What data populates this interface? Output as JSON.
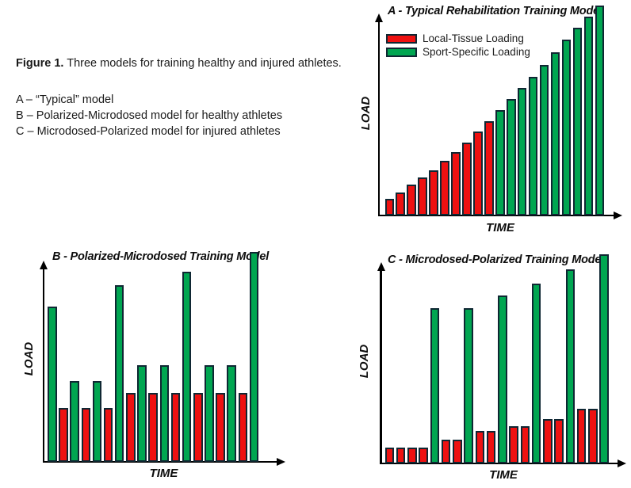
{
  "figure_caption": {
    "label": "Figure 1.",
    "text": "Three models for training healthy and injured athletes.",
    "model_list": [
      "A – “Typical” model",
      "B – Polarized-Microdosed model for healthy athletes",
      "C – Microdosed-Polarized model for injured athletes"
    ]
  },
  "colors": {
    "local_tissue_red": "#ee1111",
    "sport_specific_green": "#00a651",
    "bar_outline": "#0f2733",
    "axis": "#000000"
  },
  "chart_data": [
    {
      "id": "A",
      "type": "bar",
      "title": "A - Typical Rehabilitation Training Model",
      "xlabel": "TIME",
      "ylabel": "LOAD",
      "axes": "unlabeled schematic axes with arrowheads",
      "values_unit": "relative load (fraction of tallest bar)",
      "ylim": [
        0,
        1
      ],
      "grid": false,
      "legend_position": "top-left",
      "series": [
        {
          "key": "local",
          "name": "Local-Tissue Loading",
          "color": "#ee1111"
        },
        {
          "key": "sport",
          "name": "Sport-Specific Loading",
          "color": "#00a651"
        }
      ],
      "bars": [
        {
          "s": "local",
          "v": 0.08
        },
        {
          "s": "local",
          "v": 0.11
        },
        {
          "s": "local",
          "v": 0.147
        },
        {
          "s": "local",
          "v": 0.181
        },
        {
          "s": "local",
          "v": 0.215
        },
        {
          "s": "local",
          "v": 0.26
        },
        {
          "s": "local",
          "v": 0.302
        },
        {
          "s": "local",
          "v": 0.347
        },
        {
          "s": "local",
          "v": 0.4
        },
        {
          "s": "local",
          "v": 0.449
        },
        {
          "s": "sport",
          "v": 0.502
        },
        {
          "s": "sport",
          "v": 0.555
        },
        {
          "s": "sport",
          "v": 0.608
        },
        {
          "s": "sport",
          "v": 0.66
        },
        {
          "s": "sport",
          "v": 0.717
        },
        {
          "s": "sport",
          "v": 0.777
        },
        {
          "s": "sport",
          "v": 0.838
        },
        {
          "s": "sport",
          "v": 0.894
        },
        {
          "s": "sport",
          "v": 0.947
        },
        {
          "s": "sport",
          "v": 1.0
        }
      ]
    },
    {
      "id": "B",
      "type": "bar",
      "title": "B - Polarized-Microdosed Training Model",
      "xlabel": "TIME",
      "ylabel": "LOAD",
      "axes": "unlabeled schematic axes with arrowheads",
      "values_unit": "relative load (fraction of tallest bar)",
      "ylim": [
        0,
        1
      ],
      "grid": false,
      "legend_position": "none",
      "series": [
        {
          "key": "local",
          "name": "Local-Tissue Loading",
          "color": "#ee1111"
        },
        {
          "key": "sport",
          "name": "Sport-Specific Loading",
          "color": "#00a651"
        }
      ],
      "bars": [
        {
          "s": "sport",
          "v": 0.74
        },
        {
          "s": "local",
          "v": 0.257
        },
        {
          "s": "sport",
          "v": 0.385
        },
        {
          "s": "local",
          "v": 0.257
        },
        {
          "s": "sport",
          "v": 0.385
        },
        {
          "s": "local",
          "v": 0.257
        },
        {
          "s": "sport",
          "v": 0.842
        },
        {
          "s": "local",
          "v": 0.328
        },
        {
          "s": "sport",
          "v": 0.46
        },
        {
          "s": "local",
          "v": 0.328
        },
        {
          "s": "sport",
          "v": 0.46
        },
        {
          "s": "local",
          "v": 0.328
        },
        {
          "s": "sport",
          "v": 0.906
        },
        {
          "s": "local",
          "v": 0.328
        },
        {
          "s": "sport",
          "v": 0.46
        },
        {
          "s": "local",
          "v": 0.328
        },
        {
          "s": "sport",
          "v": 0.46
        },
        {
          "s": "local",
          "v": 0.328
        },
        {
          "s": "sport",
          "v": 1.0
        }
      ]
    },
    {
      "id": "C",
      "type": "bar",
      "title": "C - Microdosed-Polarized Training Model",
      "xlabel": "TIME",
      "ylabel": "LOAD",
      "axes": "unlabeled schematic axes with arrowheads",
      "values_unit": "relative load (fraction of tallest bar)",
      "ylim": [
        0,
        1
      ],
      "grid": false,
      "legend_position": "none",
      "series": [
        {
          "key": "local",
          "name": "Local-Tissue Loading",
          "color": "#ee1111"
        },
        {
          "key": "sport",
          "name": "Sport-Specific Loading",
          "color": "#00a651"
        }
      ],
      "bars": [
        {
          "s": "local",
          "v": 0.076
        },
        {
          "s": "local",
          "v": 0.076
        },
        {
          "s": "local",
          "v": 0.076
        },
        {
          "s": "local",
          "v": 0.076
        },
        {
          "s": "sport",
          "v": 0.742
        },
        {
          "s": "local",
          "v": 0.114
        },
        {
          "s": "local",
          "v": 0.114
        },
        {
          "s": "sport",
          "v": 0.742
        },
        {
          "s": "local",
          "v": 0.155
        },
        {
          "s": "local",
          "v": 0.155
        },
        {
          "s": "sport",
          "v": 0.803
        },
        {
          "s": "local",
          "v": 0.178
        },
        {
          "s": "local",
          "v": 0.178
        },
        {
          "s": "sport",
          "v": 0.86
        },
        {
          "s": "local",
          "v": 0.212
        },
        {
          "s": "local",
          "v": 0.212
        },
        {
          "s": "sport",
          "v": 0.928
        },
        {
          "s": "local",
          "v": 0.26
        },
        {
          "s": "local",
          "v": 0.26
        },
        {
          "s": "sport",
          "v": 1.0
        }
      ]
    }
  ]
}
